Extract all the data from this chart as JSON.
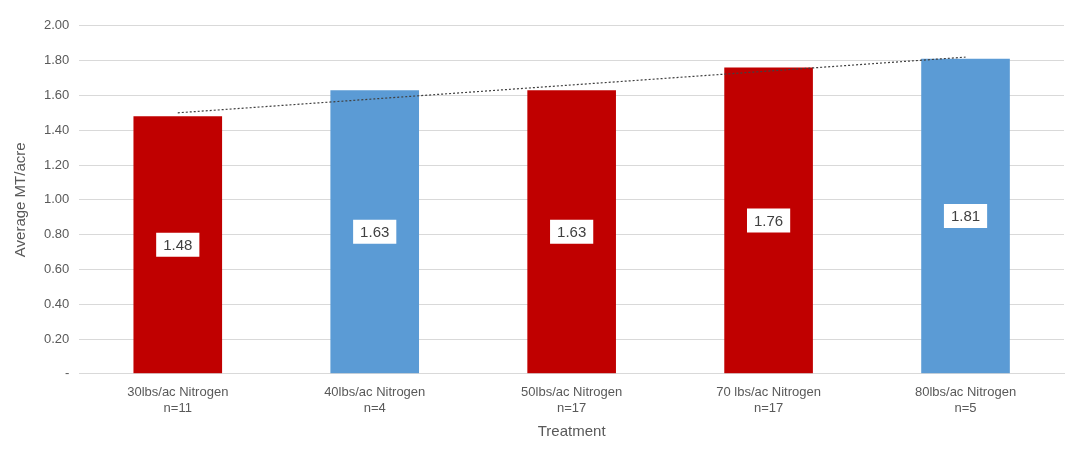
{
  "chart_data": {
    "type": "bar",
    "xlabel": "Treatment",
    "ylabel": "Average MT/acre",
    "categories": [
      "30lbs/ac Nitrogen\nn=11",
      "40lbs/ac Nitrogen\nn=4",
      "50lbs/ac Nitrogen\nn=17",
      "70 lbs/ac Nitrogen\nn=17",
      "80lbs/ac Nitrogen\nn=5"
    ],
    "series": [
      {
        "values": [
          1.48,
          1.63,
          1.63,
          1.76,
          1.81
        ],
        "value_labels": [
          "1.48",
          "1.63",
          "1.63",
          "1.76",
          "1.81"
        ],
        "colors": [
          "#c00000",
          "#5b9bd5",
          "#c00000",
          "#c00000",
          "#5b9bd5"
        ]
      },
      {
        "type": "line",
        "color": "#404040",
        "line_style": "dotted",
        "values": [
          1.5,
          1.58,
          1.66,
          1.74,
          1.82
        ]
      }
    ],
    "ylim": [
      0,
      2
    ],
    "yticks": [
      {
        "value": 0,
        "label": "-"
      },
      {
        "value": 0.2,
        "label": "0.20"
      },
      {
        "value": 0.4,
        "label": "0.40"
      },
      {
        "value": 0.6,
        "label": "0.60"
      },
      {
        "value": 0.8,
        "label": "0.80"
      },
      {
        "value": 1.0,
        "label": "1.00"
      },
      {
        "value": 1.2,
        "label": "1.20"
      },
      {
        "value": 1.4,
        "label": "1.40"
      },
      {
        "value": 1.6,
        "label": "1.60"
      },
      {
        "value": 1.8,
        "label": "1.80"
      },
      {
        "value": 2.0,
        "label": "2.00"
      }
    ],
    "grid": "y",
    "legend": false
  }
}
